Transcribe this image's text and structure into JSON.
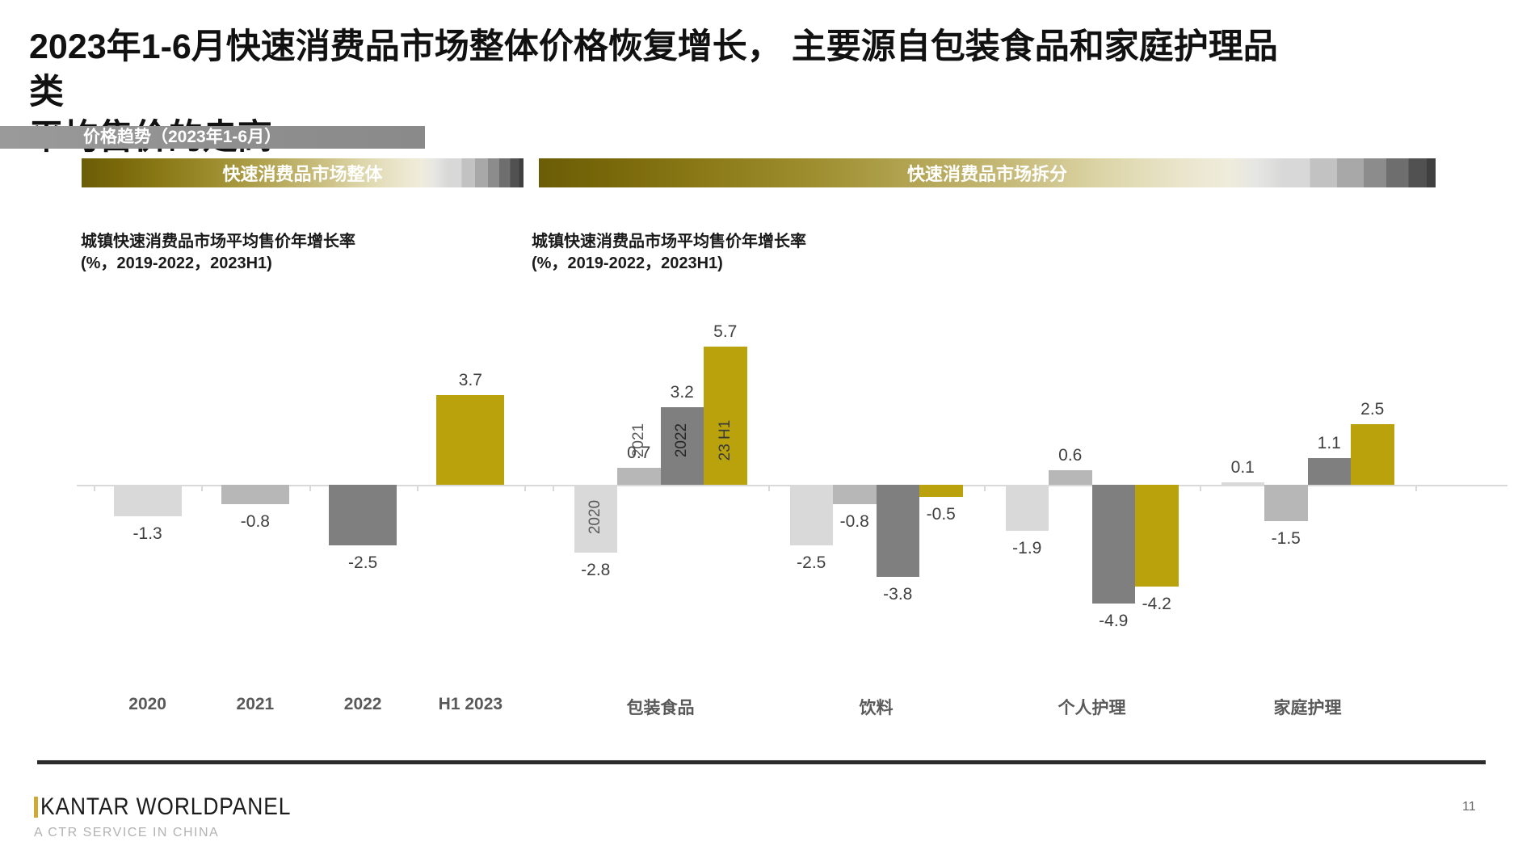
{
  "slide": {
    "title_line1": "2023年1-6月快速消费品市场整体价格恢复增长， 主要源自包装食品和家庭护理品类",
    "title_line2": "平均售价的走高",
    "tag_banner": "价格趋势（2023年1-6月）",
    "page_number": "11"
  },
  "banners": {
    "left": "快速消费品市场整体",
    "right": "快速消费品市场拆分"
  },
  "charts": {
    "subtitle_line1": "城镇快速消费品市场平均售价年增长率",
    "subtitle_line2": "(%，2019-2022，2023H1)"
  },
  "footer": {
    "logo_main": "KANTAR WORLDPANEL",
    "logo_sub": "A CTR SERVICE IN CHINA"
  },
  "colors": {
    "accent_gold": "#b9a20b",
    "bar_light_gray": "#d9d9d9",
    "bar_medium_gray": "#b7b7b7",
    "bar_dark_gray": "#7f7f7f",
    "axis_gray": "#d9d9d9",
    "value_label": "#3f3f3f",
    "category_label": "#595959"
  },
  "chart_data": [
    {
      "type": "bar",
      "title": "城镇快速消费品市场平均售价年增长率",
      "subtitle": "(%，2019-2022，2023H1)",
      "unit": "%",
      "categories": [
        "2020",
        "2021",
        "2022",
        "H1 2023"
      ],
      "values": [
        -1.3,
        -0.8,
        -2.5,
        3.7
      ],
      "colors": [
        "#d9d9d9",
        "#b7b7b7",
        "#7f7f7f",
        "#b9a20b"
      ],
      "baseline": 0,
      "ylim": [
        -5.5,
        6.5
      ],
      "grid": false,
      "legend": false,
      "data_labels": "outside-end"
    },
    {
      "type": "grouped-bar",
      "title": "城镇快速消费品市场平均售价年增长率",
      "subtitle": "(%，2019-2022，2023H1)",
      "unit": "%",
      "categories": [
        "包装食品",
        "饮料",
        "个人护理",
        "家庭护理"
      ],
      "series": [
        {
          "name": "2020",
          "color": "#d9d9d9",
          "label_color": "#595959",
          "values": [
            -2.8,
            -2.5,
            -1.9,
            0.1
          ]
        },
        {
          "name": "2021",
          "color": "#b7b7b7",
          "label_color": "#595959",
          "values": [
            0.7,
            -0.8,
            0.6,
            -1.5
          ]
        },
        {
          "name": "2022",
          "color": "#7f7f7f",
          "label_color": "#262626",
          "values": [
            3.2,
            -3.8,
            -4.9,
            1.1
          ]
        },
        {
          "name": "23 H1",
          "color": "#b9a20b",
          "label_color": "#3a3a3a",
          "values": [
            5.7,
            -0.5,
            -4.2,
            2.5
          ]
        }
      ],
      "series_labels_shown_on_first_group_only": true,
      "baseline": 0,
      "ylim": [
        -5.5,
        6.5
      ],
      "grid": false,
      "legend": false,
      "data_labels": "outside-end"
    }
  ]
}
